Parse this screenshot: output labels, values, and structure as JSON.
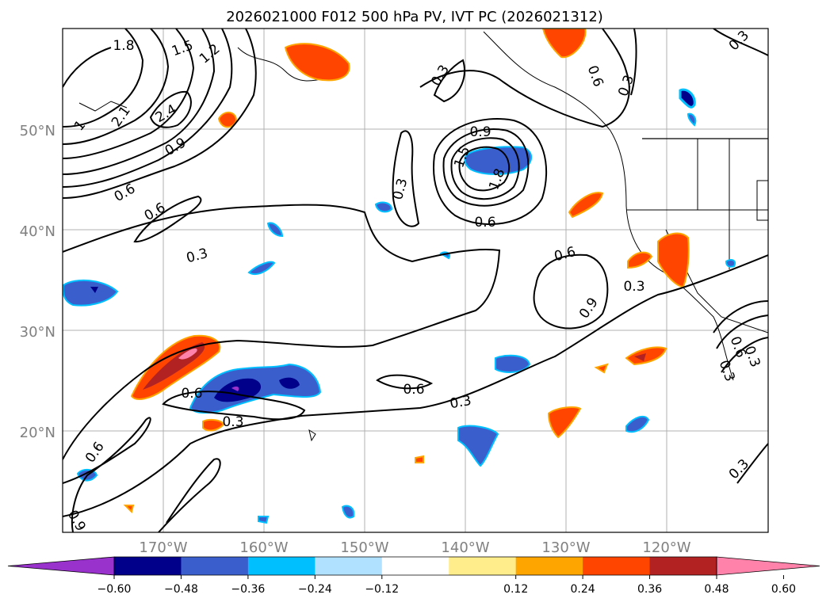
{
  "title": "2026021000 F012 500 hPa PV, IVT PC (2026021312)",
  "map": {
    "lon_range": [
      -180,
      -110
    ],
    "lat_range": [
      10,
      60
    ],
    "lat_labels": [
      "20°N",
      "30°N",
      "40°N",
      "50°N"
    ],
    "lon_labels": [
      "170°W",
      "160°W",
      "150°W",
      "140°W",
      "130°W",
      "120°W"
    ],
    "contour_labels": [
      "1.8",
      "1.5",
      "1.2",
      "1",
      "2.1",
      "2.4",
      "0.9",
      "0.6",
      "0.6",
      "0.3",
      "0.3",
      "0.9",
      "1.5",
      "1.8",
      "0.3",
      "0.6",
      "0.3",
      "0.6",
      "0.6",
      "0.9",
      "0.3",
      "0.6",
      "0.3",
      "0.3",
      "0.6",
      "0.3",
      "0.6",
      "0.9",
      "0.3",
      "0.6",
      "0.3",
      "0.3"
    ]
  },
  "colorbar": {
    "tick_labels": [
      "−0.60",
      "−0.48",
      "−0.36",
      "−0.24",
      "−0.12",
      "0.12",
      "0.24",
      "0.36",
      "0.48",
      "0.60"
    ],
    "colors": [
      "#9932cc",
      "#00008b",
      "#3a5fcd",
      "#00bfff",
      "#b0e2ff",
      "#ffffff",
      "#ffec8b",
      "#ffa500",
      "#ff4500",
      "#b22222",
      "#ff82ab"
    ]
  }
}
